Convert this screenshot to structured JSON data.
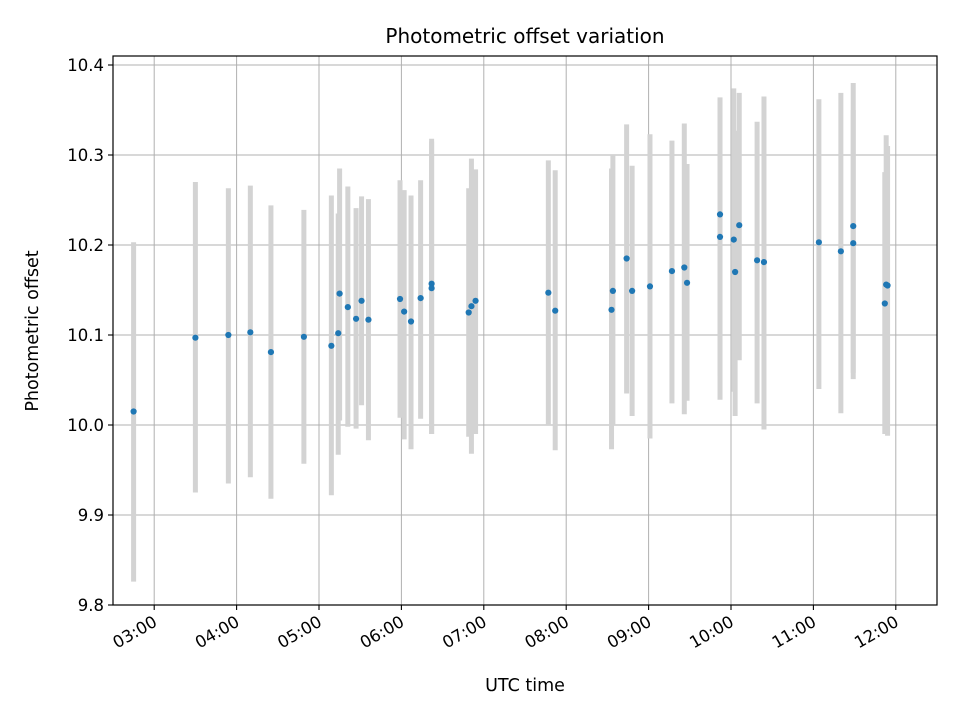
{
  "chart_data": {
    "type": "scatter",
    "title": "Photometric offset variation",
    "xlabel": "UTC time",
    "ylabel": "Photometric offset",
    "x_is_time": true,
    "xlim": [
      "02:30",
      "12:30"
    ],
    "ylim": [
      9.8,
      10.41
    ],
    "xticks": [
      "03:00",
      "04:00",
      "05:00",
      "06:00",
      "07:00",
      "08:00",
      "09:00",
      "10:00",
      "11:00",
      "12:00"
    ],
    "yticks": [
      9.8,
      9.9,
      10.0,
      10.1,
      10.2,
      10.3,
      10.4
    ],
    "ytick_labels": [
      "9.8",
      "9.9",
      "10.0",
      "10.1",
      "10.2",
      "10.3",
      "10.4"
    ],
    "grid": true,
    "colors": {
      "point": "#1f77b4",
      "errorbar": "#d3d3d3",
      "grid": "#b0b0b0"
    },
    "series": [
      {
        "x": [
          "02:45",
          "03:30",
          "03:54",
          "04:10",
          "04:25",
          "04:49",
          "05:09",
          "05:14",
          "05:15",
          "05:21",
          "05:27",
          "05:31",
          "05:36",
          "05:59",
          "06:02",
          "06:07",
          "06:14",
          "06:22",
          "06:22",
          "06:49",
          "06:51",
          "06:54",
          "07:47",
          "07:52",
          "08:33",
          "08:34",
          "08:44",
          "08:48",
          "09:01",
          "09:17",
          "09:26",
          "09:28",
          "09:52",
          "09:52",
          "10:02",
          "10:03",
          "10:06",
          "10:19",
          "10:24",
          "11:04",
          "11:20",
          "11:29",
          "11:29",
          "11:52",
          "11:53",
          "11:54"
        ],
        "y": [
          10.015,
          10.097,
          10.1,
          10.103,
          10.081,
          10.098,
          10.088,
          10.102,
          10.146,
          10.131,
          10.118,
          10.138,
          10.117,
          10.14,
          10.126,
          10.115,
          10.141,
          10.157,
          10.152,
          10.125,
          10.132,
          10.138,
          10.147,
          10.127,
          10.128,
          10.149,
          10.185,
          10.149,
          10.154,
          10.171,
          10.175,
          10.158,
          10.209,
          10.234,
          10.206,
          10.17,
          10.222,
          10.183,
          10.181,
          10.203,
          10.193,
          10.221,
          10.202,
          10.135,
          10.156,
          10.155
        ],
        "yerr_low": [
          9.826,
          9.925,
          9.935,
          9.942,
          9.918,
          9.957,
          9.922,
          9.967,
          10.005,
          9.998,
          9.996,
          10.022,
          9.983,
          10.008,
          9.984,
          9.973,
          10.007,
          9.99,
          9.99,
          9.987,
          9.968,
          9.99,
          10.0,
          9.972,
          9.973,
          10.0,
          10.035,
          10.01,
          9.985,
          10.024,
          10.012,
          10.027,
          10.054,
          10.028,
          10.037,
          10.01,
          10.072,
          10.024,
          9.995,
          10.04,
          10.013,
          10.058,
          10.051,
          9.99,
          9.99,
          9.988
        ],
        "yerr_high": [
          10.203,
          10.27,
          10.263,
          10.266,
          10.244,
          10.239,
          10.255,
          10.235,
          10.285,
          10.265,
          10.241,
          10.254,
          10.251,
          10.272,
          10.261,
          10.255,
          10.272,
          10.318,
          10.315,
          10.263,
          10.296,
          10.284,
          10.294,
          10.283,
          10.285,
          10.3,
          10.334,
          10.288,
          10.323,
          10.316,
          10.335,
          10.29,
          10.364,
          10.362,
          10.374,
          10.327,
          10.369,
          10.337,
          10.365,
          10.362,
          10.369,
          10.38,
          10.35,
          10.281,
          10.322,
          10.31
        ]
      }
    ]
  }
}
